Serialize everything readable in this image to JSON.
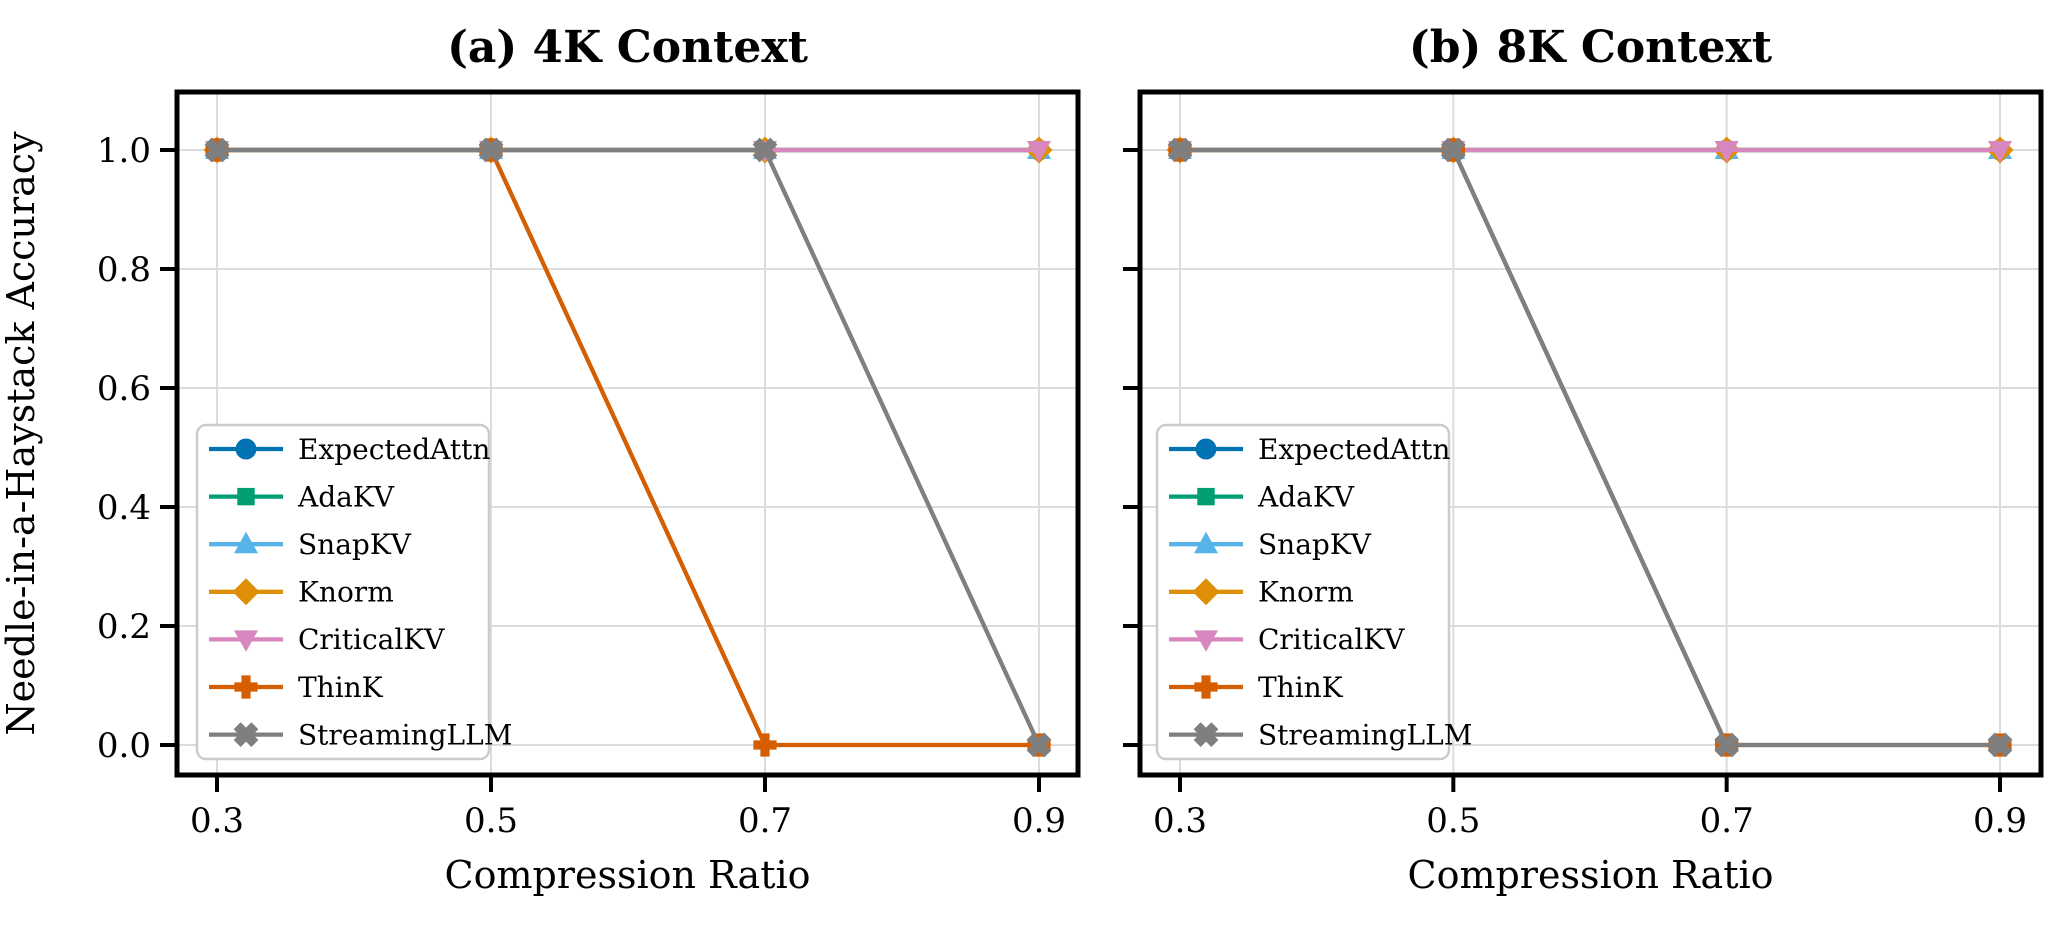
{
  "figure": {
    "background": "#ffffff",
    "grid_color": "#dcdcdc",
    "spine_color": "#000000",
    "legend_border_color": "#cccccc",
    "legend_fill": "#ffffff"
  },
  "chart_data": [
    {
      "type": "line",
      "title": "(a) 4K Context",
      "xlabel": "Compression Ratio",
      "ylabel": "Needle-in-a-Haystack Accuracy",
      "x": [
        0.3,
        0.5,
        0.7,
        0.9
      ],
      "xtick_labels": [
        "0.3",
        "0.5",
        "0.7",
        "0.9"
      ],
      "ytick_values": [
        0.0,
        0.2,
        0.4,
        0.6,
        0.8,
        1.0
      ],
      "ytick_labels": [
        "0.0",
        "0.2",
        "0.4",
        "0.6",
        "0.8",
        "1.0"
      ],
      "ylim": [
        -0.05,
        1.1
      ],
      "grid": true,
      "legend_loc": "lower left",
      "series": [
        {
          "name": "ExpectedAttn",
          "color": "#0173b2",
          "marker": "circle",
          "values": [
            1.0,
            1.0,
            1.0,
            1.0
          ]
        },
        {
          "name": "AdaKV",
          "color": "#029e73",
          "marker": "square",
          "values": [
            1.0,
            1.0,
            1.0,
            1.0
          ]
        },
        {
          "name": "SnapKV",
          "color": "#56b4e9",
          "marker": "triangle-up",
          "values": [
            1.0,
            1.0,
            1.0,
            1.0
          ]
        },
        {
          "name": "Knorm",
          "color": "#de8f05",
          "marker": "diamond",
          "values": [
            1.0,
            1.0,
            1.0,
            1.0
          ]
        },
        {
          "name": "CriticalKV",
          "color": "#d787bd",
          "marker": "triangle-down",
          "values": [
            1.0,
            1.0,
            1.0,
            1.0
          ]
        },
        {
          "name": "ThinK",
          "color": "#d55e00",
          "marker": "plus-filled",
          "values": [
            1.0,
            1.0,
            0.0,
            0.0
          ]
        },
        {
          "name": "StreamingLLM",
          "color": "#7f7f7f",
          "marker": "x-filled",
          "values": [
            1.0,
            1.0,
            1.0,
            0.0
          ]
        }
      ]
    },
    {
      "type": "line",
      "title": "(b) 8K Context",
      "xlabel": "Compression Ratio",
      "ylabel": "",
      "x": [
        0.3,
        0.5,
        0.7,
        0.9
      ],
      "xtick_labels": [
        "0.3",
        "0.5",
        "0.7",
        "0.9"
      ],
      "ytick_values": [
        0.0,
        0.2,
        0.4,
        0.6,
        0.8,
        1.0
      ],
      "ytick_labels": [],
      "ylim": [
        -0.05,
        1.1
      ],
      "grid": true,
      "legend_loc": "lower left",
      "series": [
        {
          "name": "ExpectedAttn",
          "color": "#0173b2",
          "marker": "circle",
          "values": [
            1.0,
            1.0,
            1.0,
            1.0
          ]
        },
        {
          "name": "AdaKV",
          "color": "#029e73",
          "marker": "square",
          "values": [
            1.0,
            1.0,
            1.0,
            1.0
          ]
        },
        {
          "name": "SnapKV",
          "color": "#56b4e9",
          "marker": "triangle-up",
          "values": [
            1.0,
            1.0,
            1.0,
            1.0
          ]
        },
        {
          "name": "Knorm",
          "color": "#de8f05",
          "marker": "diamond",
          "values": [
            1.0,
            1.0,
            1.0,
            1.0
          ]
        },
        {
          "name": "CriticalKV",
          "color": "#d787bd",
          "marker": "triangle-down",
          "values": [
            1.0,
            1.0,
            1.0,
            1.0
          ]
        },
        {
          "name": "ThinK",
          "color": "#d55e00",
          "marker": "plus-filled",
          "values": [
            1.0,
            1.0,
            0.0,
            0.0
          ]
        },
        {
          "name": "StreamingLLM",
          "color": "#7f7f7f",
          "marker": "x-filled",
          "values": [
            1.0,
            1.0,
            0.0,
            0.0
          ]
        }
      ]
    }
  ]
}
